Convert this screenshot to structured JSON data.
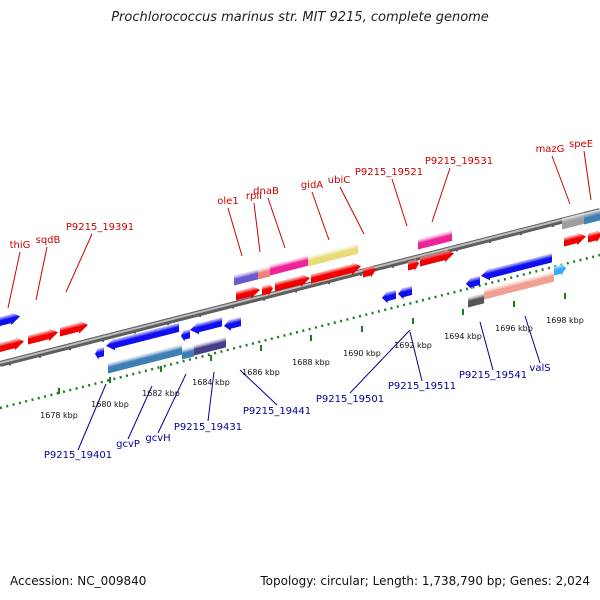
{
  "title": "Prochlorococcus marinus str. MIT 9215, complete genome",
  "footer": {
    "accession": "Accession: NC_009840",
    "summary": "Topology: circular; Length: 1,738,790 bp; Genes: 2,024"
  },
  "colors": {
    "forward_label": "#cc0000",
    "reverse_label": "#000099",
    "scale_tick": "#1a7f1a",
    "backbone": "#8a8a8a"
  },
  "scale": {
    "unit": "kbp",
    "ticks": [
      {
        "kbp": 1678,
        "label": "1678 kbp"
      },
      {
        "kbp": 1680,
        "label": "1680 kbp"
      },
      {
        "kbp": 1682,
        "label": "1682 kbp"
      },
      {
        "kbp": 1684,
        "label": "1684 kbp"
      },
      {
        "kbp": 1686,
        "label": "1686 kbp"
      },
      {
        "kbp": 1688,
        "label": "1688 kbp"
      },
      {
        "kbp": 1690,
        "label": "1690 kbp"
      },
      {
        "kbp": 1692,
        "label": "1692 kbp"
      },
      {
        "kbp": 1694,
        "label": "1694 kbp"
      },
      {
        "kbp": 1696,
        "label": "1696 kbp"
      },
      {
        "kbp": 1698,
        "label": "1698 kbp"
      }
    ]
  },
  "forward_labels": [
    "thiG",
    "sqdB",
    "P9215_19391",
    "ole1",
    "rplI",
    "dnaB",
    "gidA",
    "ubiC",
    "P9215_19521",
    "P9215_19531",
    "mazG",
    "speE"
  ],
  "reverse_labels": [
    "P9215_19401",
    "gcvP",
    "gcvH",
    "P9215_19431",
    "P9215_19441",
    "P9215_19501",
    "P9215_19511",
    "P9215_19541",
    "valS"
  ]
}
